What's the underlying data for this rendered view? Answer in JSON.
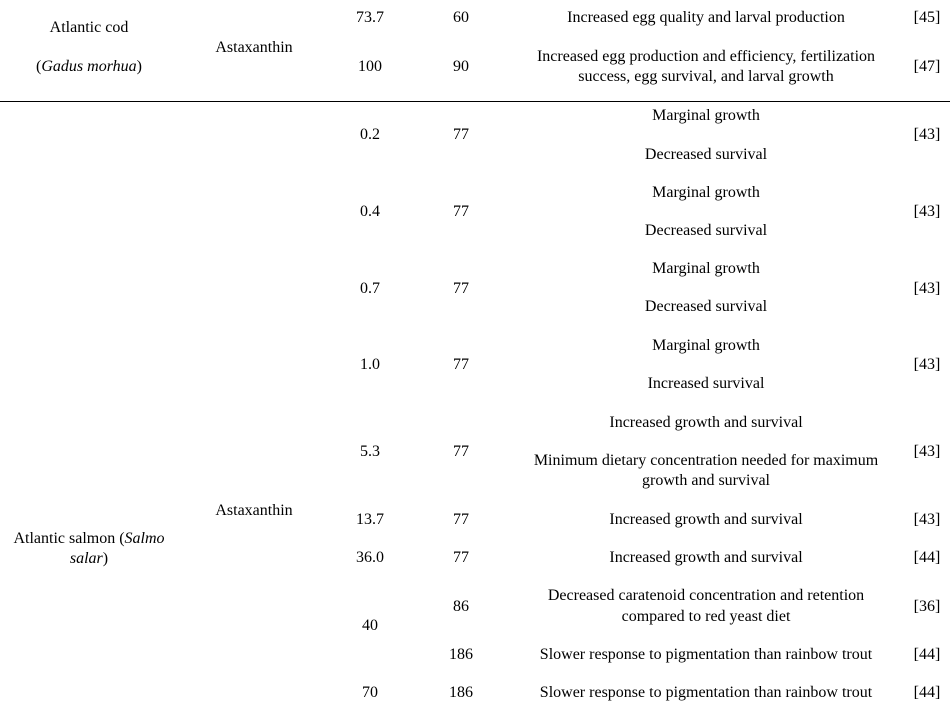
{
  "species": {
    "cod_line1": "Atlantic cod",
    "cod_paren_open": "(",
    "cod_sci": "Gadus morhua",
    "cod_paren_close": ")",
    "salmon_line1_plain": "Atlantic salmon (",
    "salmon_line1_sci": "Salmo",
    "salmon_line2_sci": "salar",
    "salmon_line2_close": ")"
  },
  "compound": {
    "cod": "Astaxanthin",
    "salmon": "Astaxanthin"
  },
  "cod_rows": [
    {
      "conc": "73.7",
      "dur": "60",
      "effect": [
        "Increased egg quality and larval production"
      ],
      "ref": "[45]"
    },
    {
      "conc": "100",
      "dur": "90",
      "effect": [
        "Increased egg production and efficiency, fertilization",
        "success, egg survival, and larval growth"
      ],
      "ref": "[47]"
    }
  ],
  "salmon_rows": [
    {
      "conc": "0.2",
      "dur": "77",
      "effect_a": "Marginal growth",
      "effect_b": "Decreased survival",
      "ref": "[43]"
    },
    {
      "conc": "0.4",
      "dur": "77",
      "effect_a": "Marginal growth",
      "effect_b": "Decreased survival",
      "ref": "[43]"
    },
    {
      "conc": "0.7",
      "dur": "77",
      "effect_a": "Marginal growth",
      "effect_b": "Decreased survival",
      "ref": "[43]"
    },
    {
      "conc": "1.0",
      "dur": "77",
      "effect_a": "Marginal growth",
      "effect_b": "Increased survival",
      "ref": "[43]"
    },
    {
      "conc": "5.3",
      "dur": "77",
      "effect_a": "Increased growth and survival",
      "effect_b": "Minimum dietary concentration needed for maximum",
      "effect_c": "growth and survival",
      "ref": "[43]"
    },
    {
      "conc": "13.7",
      "dur": "77",
      "effect_a": "Increased growth and survival",
      "ref": "[43]"
    },
    {
      "conc": "36.0",
      "dur": "77",
      "effect_a": "Increased growth and survival",
      "ref": "[44]"
    },
    {
      "conc": "40",
      "dur": "86",
      "effect_a": "Decreased caratenoid concentration and retention",
      "effect_b": "compared to red yeast diet",
      "ref": "[36]"
    },
    {
      "dur": "186",
      "effect_a": "Slower response to pigmentation than rainbow trout",
      "ref": "[44]"
    },
    {
      "conc": "70",
      "dur": "186",
      "effect_a": "Slower response to pigmentation than rainbow trout",
      "ref": "[44]"
    }
  ]
}
